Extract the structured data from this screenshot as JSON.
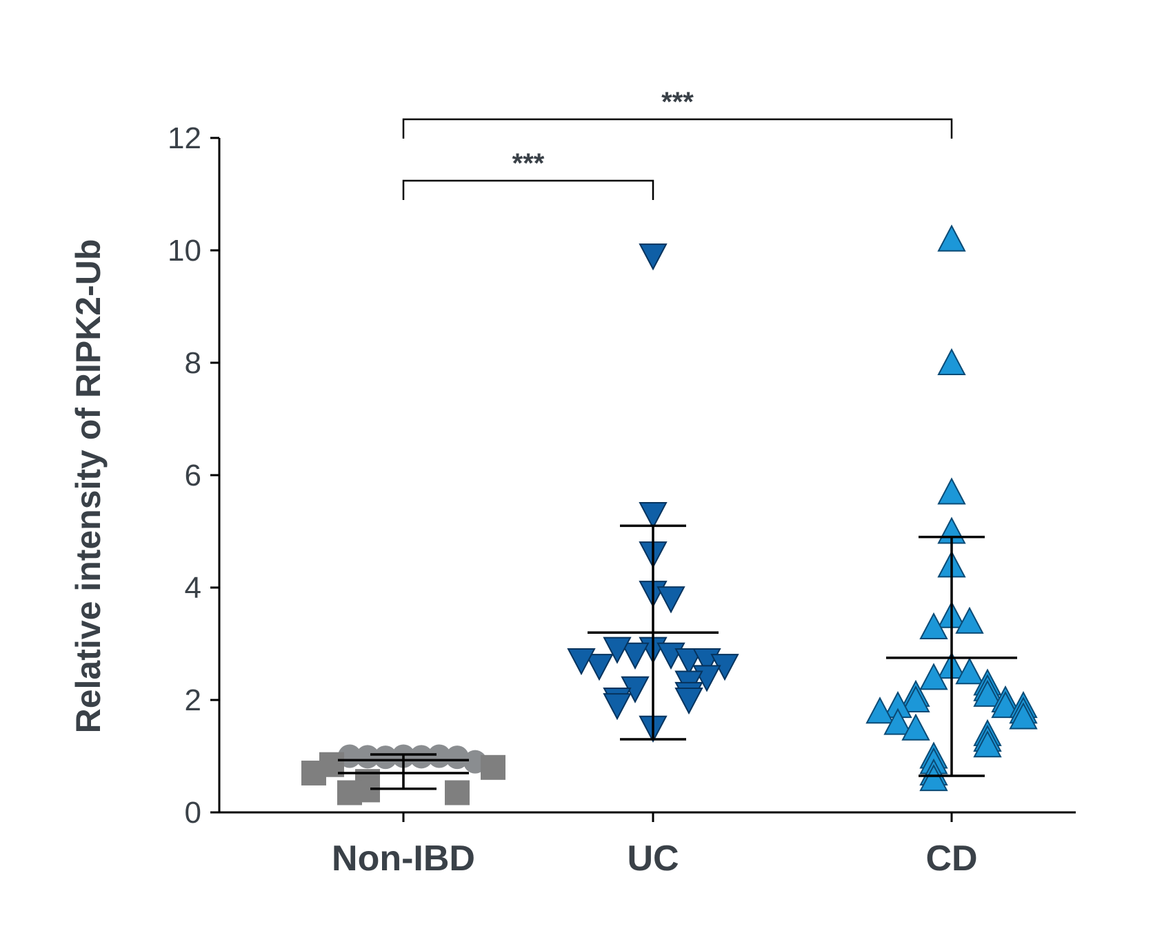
{
  "chart_data": {
    "type": "scatter",
    "title": "",
    "xlabel": "",
    "ylabel": "Relative intensity of RIPK2-Ub",
    "ylim": [
      0,
      12
    ],
    "yticks": [
      0,
      2,
      4,
      6,
      8,
      10,
      12
    ],
    "categories": [
      "Non-IBD",
      "UC",
      "CD"
    ],
    "series": [
      {
        "name": "Non-IBD",
        "color": "#8a8d90",
        "values": [
          1.0,
          0.99,
          0.98,
          1.0,
          0.99,
          0.98,
          1.0,
          0.9,
          0.85,
          0.8,
          0.7,
          0.55,
          0.5,
          0.45,
          0.4,
          0.35,
          0.35
        ],
        "mean": 0.93,
        "sd_upper": 1.03,
        "sd_lower": 0.42,
        "mean2": 0.7
      },
      {
        "name": "UC",
        "color": "#0f5fa6",
        "values": [
          9.9,
          5.3,
          4.6,
          3.9,
          3.8,
          2.9,
          2.8,
          2.8,
          2.7,
          2.9,
          2.7,
          2.6,
          2.6,
          2.7,
          2.4,
          2.3,
          2.2,
          2.1,
          2.0,
          2.0,
          1.9,
          1.5
        ],
        "mean": 3.2,
        "sd_upper": 5.1,
        "sd_lower": 1.3
      },
      {
        "name": "CD",
        "color": "#1c97d8",
        "values": [
          10.2,
          8.0,
          5.7,
          5.0,
          4.4,
          3.5,
          3.4,
          3.3,
          2.6,
          2.5,
          2.4,
          2.3,
          2.2,
          2.1,
          2.1,
          2.0,
          2.0,
          1.9,
          1.9,
          1.9,
          1.8,
          1.8,
          1.7,
          1.6,
          1.5,
          1.4,
          1.3,
          1.2,
          1.0,
          0.9,
          0.7,
          0.6
        ],
        "mean": 2.75,
        "sd_upper": 4.9,
        "sd_lower": 0.65
      }
    ],
    "annotations": [
      {
        "from": "Non-IBD",
        "to": "UC",
        "label": "***"
      },
      {
        "from": "Non-IBD",
        "to": "CD",
        "label": "***"
      }
    ]
  }
}
